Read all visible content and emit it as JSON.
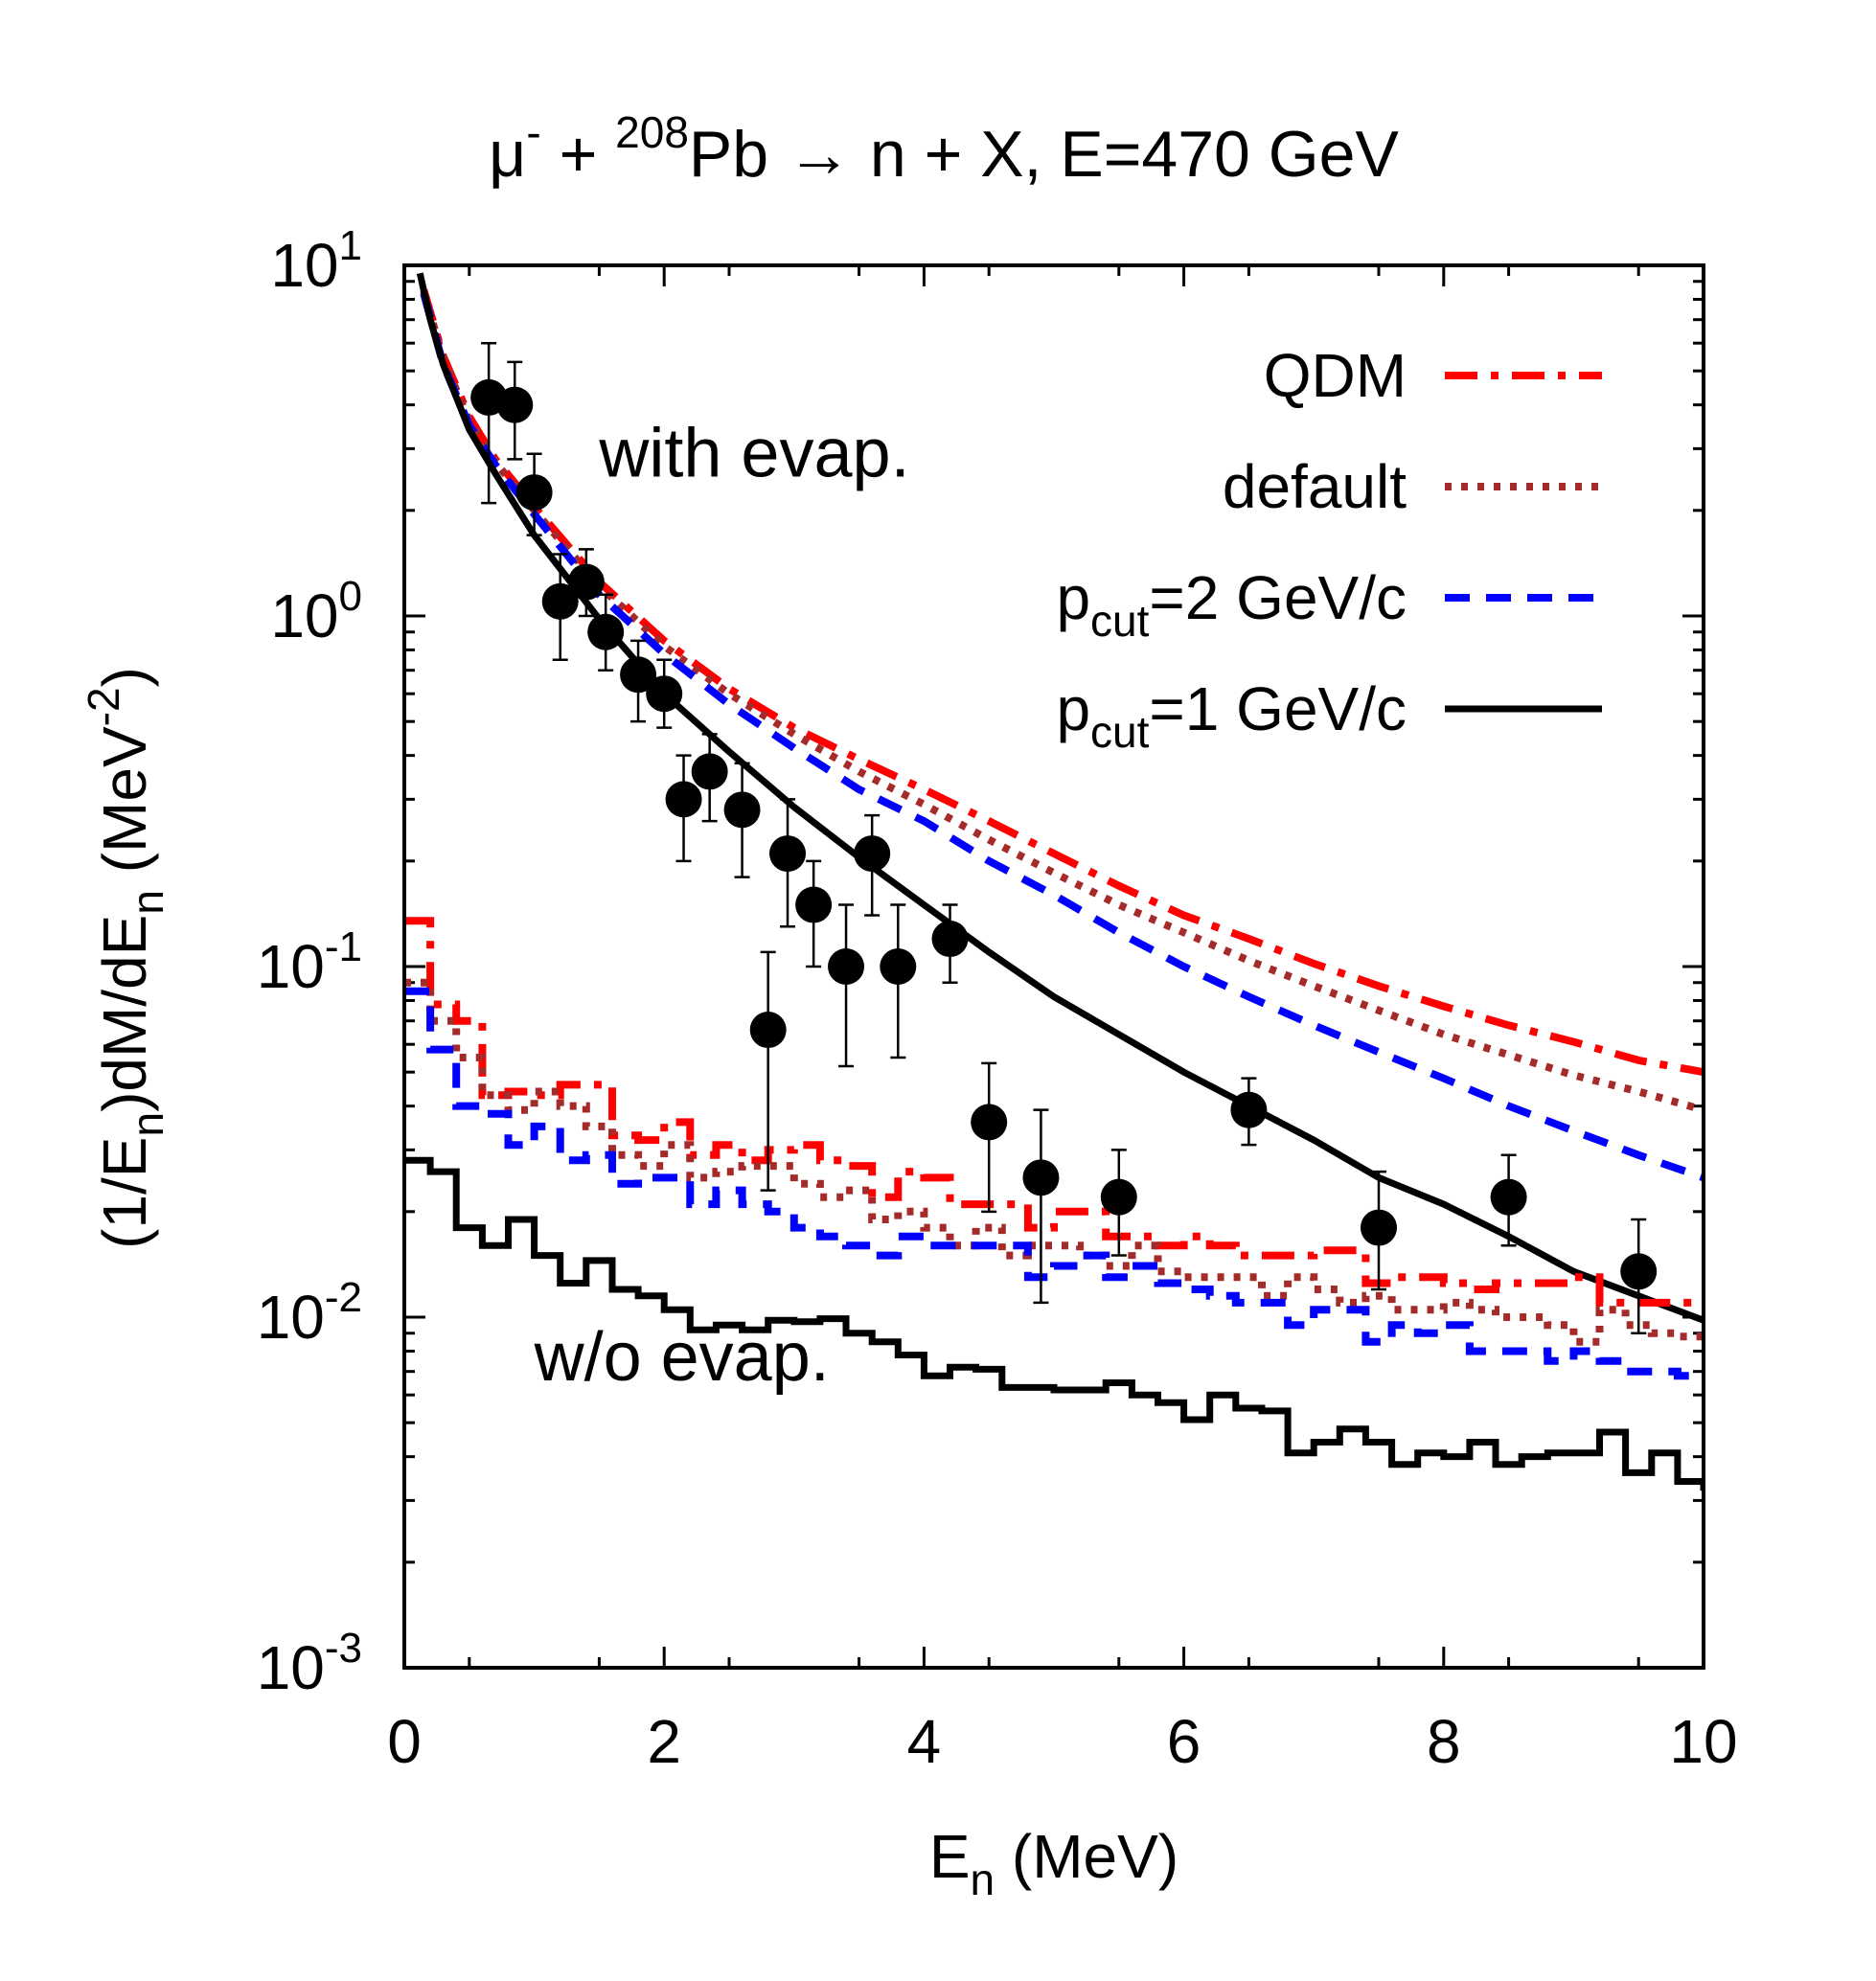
{
  "chart_data": {
    "type": "line",
    "title": {
      "prefix": "μ",
      "sup1": "-",
      "mid": " + ",
      "sup2": "208",
      "rest": "Pb → n + X, E=470 GeV"
    },
    "xlabel": {
      "main": "E",
      "sub": "n",
      "rest": " (MeV)"
    },
    "ylabel": {
      "p1": "(1/E",
      "s1": "n",
      "p2": ")dM/dE",
      "s2": "n",
      "p3": " (MeV",
      "sup": "-2",
      "p4": ")"
    },
    "xlim": [
      0,
      10
    ],
    "ylim": [
      0.001,
      10
    ],
    "yscale": "log",
    "x_ticks": [
      {
        "value": 0,
        "label": "0"
      },
      {
        "value": 2,
        "label": "2"
      },
      {
        "value": 4,
        "label": "4"
      },
      {
        "value": 6,
        "label": "6"
      },
      {
        "value": 8,
        "label": "8"
      },
      {
        "value": 10,
        "label": "10"
      }
    ],
    "y_ticks": [
      {
        "value": 10,
        "base": "10",
        "exp": "1"
      },
      {
        "value": 1,
        "base": "10",
        "exp": "0"
      },
      {
        "value": 0.1,
        "base": "10",
        "exp": "-1"
      },
      {
        "value": 0.01,
        "base": "10",
        "exp": "-2"
      },
      {
        "value": 0.001,
        "base": "10",
        "exp": "-3"
      }
    ],
    "annotations": [
      {
        "text": "with evap.",
        "x": 1.5,
        "y": 2.5
      },
      {
        "text": "w/o evap.",
        "x": 1.0,
        "y": 0.0066
      }
    ],
    "legend": {
      "position": "top-right",
      "entries": [
        {
          "series": "qdm",
          "label": "QDM"
        },
        {
          "series": "default",
          "label": "default"
        },
        {
          "series": "p2",
          "label": "p",
          "sub": "cut",
          "tail": "=2 GeV/c"
        },
        {
          "series": "p1",
          "label": "p",
          "sub": "cut",
          "tail": "=1 GeV/c"
        }
      ]
    },
    "series": [
      {
        "id": "qdm",
        "name": "QDM",
        "color": "#ff0000",
        "style": "dashdot",
        "group": "with evap.",
        "x": [
          0.15,
          0.3,
          0.5,
          0.7,
          1.0,
          1.5,
          2.0,
          2.5,
          3.0,
          3.5,
          4.0,
          4.5,
          5.0,
          5.5,
          6.0,
          6.5,
          7.0,
          7.5,
          8.0,
          8.5,
          9.0,
          9.5,
          10.0
        ],
        "y": [
          8.5,
          5.5,
          3.7,
          2.8,
          2.05,
          1.25,
          0.85,
          0.62,
          0.48,
          0.39,
          0.32,
          0.26,
          0.21,
          0.17,
          0.14,
          0.12,
          0.102,
          0.088,
          0.077,
          0.068,
          0.061,
          0.054,
          0.05
        ]
      },
      {
        "id": "default",
        "name": "default",
        "color": "#a52a2a",
        "style": "dotted",
        "group": "with evap.",
        "x": [
          0.15,
          0.3,
          0.5,
          0.7,
          1.0,
          1.5,
          2.0,
          2.5,
          3.0,
          3.5,
          4.0,
          4.5,
          5.0,
          5.5,
          6.0,
          6.5,
          7.0,
          7.5,
          8.0,
          8.5,
          9.0,
          9.5,
          10.0
        ],
        "y": [
          8.4,
          5.4,
          3.6,
          2.75,
          2.0,
          1.22,
          0.82,
          0.6,
          0.46,
          0.36,
          0.29,
          0.23,
          0.185,
          0.15,
          0.125,
          0.104,
          0.088,
          0.075,
          0.064,
          0.056,
          0.049,
          0.044,
          0.039
        ]
      },
      {
        "id": "p2",
        "name": "p_cut=2 GeV/c",
        "color": "#0000ff",
        "style": "dashed",
        "group": "with evap.",
        "x": [
          0.15,
          0.3,
          0.5,
          0.7,
          1.0,
          1.5,
          2.0,
          2.5,
          3.0,
          3.5,
          4.0,
          4.5,
          5.0,
          5.5,
          6.0,
          6.5,
          7.0,
          7.5,
          8.0,
          8.5,
          9.0,
          9.5,
          10.0
        ],
        "y": [
          8.3,
          5.2,
          3.5,
          2.7,
          1.95,
          1.15,
          0.78,
          0.56,
          0.42,
          0.32,
          0.26,
          0.2,
          0.16,
          0.125,
          0.1,
          0.082,
          0.068,
          0.057,
          0.048,
          0.04,
          0.034,
          0.029,
          0.025
        ]
      },
      {
        "id": "p1",
        "name": "p_cut=1 GeV/c",
        "color": "#000000",
        "style": "solid",
        "group": "with evap.",
        "x": [
          0.12,
          0.2,
          0.3,
          0.5,
          0.7,
          1.0,
          1.5,
          2.0,
          2.5,
          3.0,
          3.5,
          4.0,
          4.5,
          5.0,
          5.5,
          6.0,
          6.5,
          7.0,
          7.5,
          8.0,
          8.5,
          9.0,
          9.5,
          10.0
        ],
        "y": [
          9.5,
          7.0,
          5.2,
          3.4,
          2.55,
          1.7,
          0.98,
          0.6,
          0.41,
          0.285,
          0.205,
          0.15,
          0.11,
          0.082,
          0.064,
          0.05,
          0.04,
          0.032,
          0.025,
          0.021,
          0.017,
          0.0135,
          0.0115,
          0.0098
        ]
      },
      {
        "id": "qdm_noevap",
        "name": "QDM (w/o evap.)",
        "color": "#ff0000",
        "style": "dashdot",
        "group": "w/o evap.",
        "edges": [
          0.0,
          0.2,
          0.4,
          0.6,
          0.8,
          1.0,
          1.2,
          1.4,
          1.6,
          1.8,
          2.0,
          2.2,
          2.4,
          2.6,
          2.8,
          3.0,
          3.2,
          3.4,
          3.6,
          3.8,
          4.0,
          4.2,
          4.4,
          4.6,
          4.8,
          5.0,
          5.2,
          5.4,
          5.6,
          5.8,
          6.0,
          6.2,
          6.4,
          6.6,
          6.8,
          7.0,
          7.2,
          7.4,
          7.6,
          7.8,
          8.0,
          8.2,
          8.4,
          8.6,
          8.8,
          9.0,
          9.2,
          9.4,
          9.6,
          9.8,
          10.0
        ],
        "y": [
          0.135,
          0.078,
          0.07,
          0.043,
          0.044,
          0.043,
          0.046,
          0.046,
          0.033,
          0.032,
          0.036,
          0.029,
          0.031,
          0.028,
          0.03,
          0.031,
          0.028,
          0.027,
          0.022,
          0.026,
          0.025,
          0.021,
          0.021,
          0.021,
          0.018,
          0.02,
          0.02,
          0.017,
          0.017,
          0.016,
          0.017,
          0.016,
          0.015,
          0.015,
          0.015,
          0.0155,
          0.0155,
          0.0125,
          0.013,
          0.013,
          0.0125,
          0.012,
          0.0125,
          0.0125,
          0.0125,
          0.013,
          0.011,
          0.011,
          0.011,
          0.011
        ]
      },
      {
        "id": "default_noevap",
        "name": "default (w/o evap.)",
        "color": "#a52a2a",
        "style": "dotted",
        "group": "w/o evap.",
        "edges": [
          0.0,
          0.2,
          0.4,
          0.6,
          0.8,
          1.0,
          1.2,
          1.4,
          1.6,
          1.8,
          2.0,
          2.2,
          2.4,
          2.6,
          2.8,
          3.0,
          3.2,
          3.4,
          3.6,
          3.8,
          4.0,
          4.2,
          4.4,
          4.6,
          4.8,
          5.0,
          5.2,
          5.4,
          5.6,
          5.8,
          6.0,
          6.2,
          6.4,
          6.6,
          6.8,
          7.0,
          7.2,
          7.4,
          7.6,
          7.8,
          8.0,
          8.2,
          8.4,
          8.6,
          8.8,
          9.0,
          9.2,
          9.4,
          9.6,
          9.8,
          10.0
        ],
        "y": [
          0.09,
          0.07,
          0.055,
          0.043,
          0.039,
          0.044,
          0.04,
          0.035,
          0.029,
          0.027,
          0.031,
          0.025,
          0.026,
          0.027,
          0.027,
          0.024,
          0.022,
          0.023,
          0.019,
          0.02,
          0.018,
          0.016,
          0.018,
          0.015,
          0.016,
          0.016,
          0.015,
          0.014,
          0.016,
          0.0135,
          0.013,
          0.013,
          0.013,
          0.0115,
          0.013,
          0.012,
          0.011,
          0.0115,
          0.0105,
          0.0105,
          0.011,
          0.0105,
          0.01,
          0.01,
          0.0095,
          0.0085,
          0.0105,
          0.0095,
          0.009,
          0.0088
        ]
      },
      {
        "id": "p2_noevap",
        "name": "p_cut=2 GeV/c (w/o evap.)",
        "color": "#0000ff",
        "style": "dashed",
        "group": "w/o evap.",
        "edges": [
          0.0,
          0.2,
          0.4,
          0.6,
          0.8,
          1.0,
          1.2,
          1.4,
          1.6,
          1.8,
          2.0,
          2.2,
          2.4,
          2.6,
          2.8,
          3.0,
          3.2,
          3.4,
          3.6,
          3.8,
          4.0,
          4.2,
          4.4,
          4.6,
          4.8,
          5.0,
          5.2,
          5.4,
          5.6,
          5.8,
          6.0,
          6.2,
          6.4,
          6.6,
          6.8,
          7.0,
          7.2,
          7.4,
          7.6,
          7.8,
          8.0,
          8.2,
          8.4,
          8.6,
          8.8,
          9.0,
          9.2,
          9.4,
          9.6,
          9.8,
          10.0
        ],
        "y": [
          0.085,
          0.058,
          0.04,
          0.038,
          0.031,
          0.035,
          0.028,
          0.029,
          0.024,
          0.025,
          0.025,
          0.021,
          0.023,
          0.021,
          0.02,
          0.018,
          0.017,
          0.016,
          0.015,
          0.017,
          0.016,
          0.016,
          0.016,
          0.016,
          0.013,
          0.014,
          0.015,
          0.013,
          0.014,
          0.0125,
          0.012,
          0.0115,
          0.011,
          0.011,
          0.0095,
          0.0105,
          0.0105,
          0.0085,
          0.0095,
          0.009,
          0.0095,
          0.008,
          0.008,
          0.008,
          0.0075,
          0.008,
          0.0075,
          0.007,
          0.007,
          0.0068
        ]
      },
      {
        "id": "p1_noevap",
        "name": "p_cut=1 GeV/c (w/o evap.)",
        "color": "#000000",
        "style": "solid",
        "group": "w/o evap.",
        "edges": [
          0.0,
          0.2,
          0.4,
          0.6,
          0.8,
          1.0,
          1.2,
          1.4,
          1.6,
          1.8,
          2.0,
          2.2,
          2.4,
          2.6,
          2.8,
          3.0,
          3.2,
          3.4,
          3.6,
          3.8,
          4.0,
          4.2,
          4.4,
          4.6,
          4.8,
          5.0,
          5.2,
          5.4,
          5.6,
          5.8,
          6.0,
          6.2,
          6.4,
          6.6,
          6.8,
          7.0,
          7.2,
          7.4,
          7.6,
          7.8,
          8.0,
          8.2,
          8.4,
          8.6,
          8.8,
          9.0,
          9.2,
          9.4,
          9.6,
          9.8,
          10.0
        ],
        "y": [
          0.028,
          0.026,
          0.018,
          0.016,
          0.019,
          0.015,
          0.0125,
          0.0145,
          0.012,
          0.0115,
          0.0105,
          0.0092,
          0.0095,
          0.0092,
          0.0098,
          0.0097,
          0.0099,
          0.009,
          0.0085,
          0.0078,
          0.0068,
          0.0072,
          0.0071,
          0.0063,
          0.0063,
          0.0062,
          0.0062,
          0.0065,
          0.006,
          0.0057,
          0.0051,
          0.006,
          0.0055,
          0.0054,
          0.0041,
          0.0044,
          0.0048,
          0.0044,
          0.0038,
          0.0041,
          0.004,
          0.0044,
          0.0038,
          0.004,
          0.0041,
          0.0041,
          0.0047,
          0.0036,
          0.0041,
          0.0034,
          0.0032
        ]
      }
    ],
    "data_points": {
      "name": "experiment",
      "color": "#000000",
      "x": [
        0.65,
        0.85,
        1.0,
        1.2,
        1.4,
        1.55,
        1.8,
        2.0,
        2.15,
        2.35,
        2.6,
        2.8,
        2.95,
        3.15,
        3.4,
        3.6,
        3.8,
        4.2,
        4.5,
        4.9,
        5.5,
        6.5,
        7.5,
        8.5,
        9.5
      ],
      "y": [
        4.2,
        4.0,
        2.25,
        1.1,
        1.25,
        0.9,
        0.68,
        0.6,
        0.3,
        0.36,
        0.28,
        0.066,
        0.21,
        0.15,
        0.1,
        0.21,
        0.1,
        0.12,
        0.036,
        0.025,
        0.022,
        0.039,
        0.018,
        0.022,
        0.0135
      ],
      "y_low": [
        2.1,
        2.8,
        1.7,
        0.75,
        1.0,
        0.7,
        0.5,
        0.48,
        0.2,
        0.26,
        0.18,
        0.023,
        0.13,
        0.1,
        0.052,
        0.14,
        0.055,
        0.09,
        0.02,
        0.011,
        0.015,
        0.031,
        0.012,
        0.016,
        0.009
      ],
      "y_high": [
        6.0,
        5.3,
        2.9,
        1.5,
        1.55,
        1.15,
        0.85,
        0.75,
        0.4,
        0.46,
        0.38,
        0.11,
        0.3,
        0.2,
        0.15,
        0.27,
        0.15,
        0.15,
        0.053,
        0.039,
        0.03,
        0.048,
        0.026,
        0.029,
        0.019
      ]
    }
  }
}
